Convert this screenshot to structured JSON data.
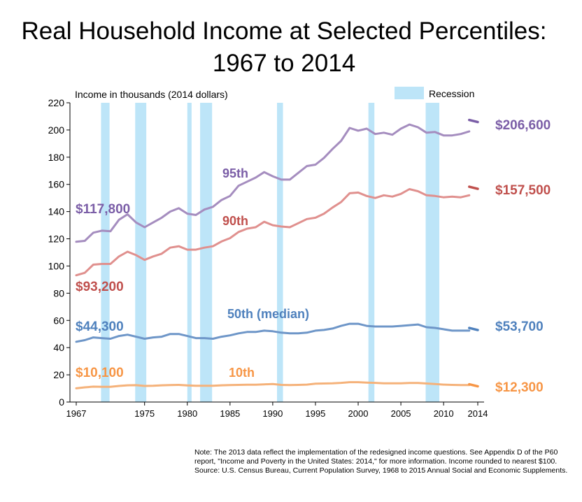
{
  "chart_data": {
    "type": "line",
    "title": [
      "Real Household Income at Selected Percentiles:",
      "1967 to 2014"
    ],
    "ylabel": "Income in thousands (2014 dollars)",
    "xlabel": "",
    "ylim": [
      0,
      220
    ],
    "yticks": [
      0,
      20,
      40,
      60,
      80,
      100,
      120,
      140,
      160,
      180,
      200,
      220
    ],
    "xlim": [
      1967,
      2014
    ],
    "xticks": [
      1967,
      1975,
      1980,
      1985,
      1990,
      1995,
      2000,
      2005,
      2010,
      2014
    ],
    "legend": {
      "label": "Recession",
      "color": "#bde5f8",
      "position": "top-right"
    },
    "recessions": [
      [
        1969.9,
        1970.9
      ],
      [
        1973.9,
        1975.2
      ],
      [
        1980.0,
        1980.5
      ],
      [
        1981.5,
        1982.9
      ],
      [
        1990.5,
        1991.2
      ],
      [
        2001.2,
        2001.9
      ],
      [
        2007.9,
        2009.5
      ]
    ],
    "series": [
      {
        "name": "95th",
        "label": "95th",
        "color": "#a58dbf",
        "marker_color": "#7b5ea7",
        "start_label": "$117,800",
        "end_label": "$206,600",
        "end_value": 206.6,
        "x": [
          1967,
          1968,
          1969,
          1970,
          1971,
          1972,
          1973,
          1974,
          1975,
          1976,
          1977,
          1978,
          1979,
          1980,
          1981,
          1982,
          1983,
          1984,
          1985,
          1986,
          1987,
          1988,
          1989,
          1990,
          1991,
          1992,
          1993,
          1994,
          1995,
          1996,
          1997,
          1998,
          1999,
          2000,
          2001,
          2002,
          2003,
          2004,
          2005,
          2006,
          2007,
          2008,
          2009,
          2010,
          2011,
          2012,
          2013
        ],
        "values": [
          117.8,
          118.5,
          124.5,
          126,
          125.5,
          134,
          138,
          132,
          128.5,
          132,
          135.5,
          140,
          142.5,
          138.5,
          137.5,
          141.5,
          143.5,
          148.5,
          151.5,
          159,
          162,
          165,
          169,
          166,
          163.5,
          163.5,
          168.5,
          173.5,
          174.5,
          179.5,
          186,
          192,
          201.5,
          199.5,
          201,
          197,
          198,
          196.5,
          201,
          204,
          202,
          198,
          198.5,
          196,
          196,
          197,
          199
        ]
      },
      {
        "name": "90th",
        "label": "90th",
        "color": "#e0908e",
        "marker_color": "#c0504d",
        "start_label": "$93,200",
        "end_label": "$157,500",
        "end_value": 157.5,
        "x": [
          1967,
          1968,
          1969,
          1970,
          1971,
          1972,
          1973,
          1974,
          1975,
          1976,
          1977,
          1978,
          1979,
          1980,
          1981,
          1982,
          1983,
          1984,
          1985,
          1986,
          1987,
          1988,
          1989,
          1990,
          1991,
          1992,
          1993,
          1994,
          1995,
          1996,
          1997,
          1998,
          1999,
          2000,
          2001,
          2002,
          2003,
          2004,
          2005,
          2006,
          2007,
          2008,
          2009,
          2010,
          2011,
          2012,
          2013
        ],
        "values": [
          93.2,
          95,
          101,
          101.5,
          101.5,
          107,
          110.5,
          108,
          104.5,
          107,
          109,
          113.5,
          114.5,
          112,
          112,
          113.5,
          114.5,
          118,
          120.5,
          125,
          127.5,
          128.5,
          132.5,
          130,
          129,
          128.5,
          131.5,
          134.5,
          135.5,
          138.5,
          143,
          147,
          153.5,
          154,
          151.5,
          150,
          152,
          151,
          153,
          156.5,
          155,
          152,
          151.5,
          150.5,
          151,
          150.5,
          152
        ]
      },
      {
        "name": "50th (median)",
        "label": "50th (median)",
        "color": "#6e96c8",
        "marker_color": "#4f81bd",
        "start_label": "$44,300",
        "end_label": "$53,700",
        "end_value": 53.7,
        "x": [
          1967,
          1968,
          1969,
          1970,
          1971,
          1972,
          1973,
          1974,
          1975,
          1976,
          1977,
          1978,
          1979,
          1980,
          1981,
          1982,
          1983,
          1984,
          1985,
          1986,
          1987,
          1988,
          1989,
          1990,
          1991,
          1992,
          1993,
          1994,
          1995,
          1996,
          1997,
          1998,
          1999,
          2000,
          2001,
          2002,
          2003,
          2004,
          2005,
          2006,
          2007,
          2008,
          2009,
          2010,
          2011,
          2012,
          2013
        ],
        "values": [
          44.3,
          45.5,
          47.5,
          47,
          46.5,
          48.5,
          49.5,
          48,
          46.5,
          47.5,
          48,
          50,
          50,
          48.5,
          47,
          47,
          46.5,
          48,
          49,
          50.5,
          51.5,
          51.5,
          52.5,
          52,
          51,
          50.5,
          50.5,
          51,
          52.5,
          53,
          54,
          56,
          57.5,
          57.5,
          56,
          55.5,
          55.5,
          55.5,
          56,
          56.5,
          57,
          55,
          54.5,
          53.5,
          52.5,
          52.5,
          52.5
        ]
      },
      {
        "name": "10th",
        "label": "10th",
        "color": "#f5b27a",
        "marker_color": "#f79646",
        "start_label": "$10,100",
        "end_label": "$12,300",
        "end_value": 12.3,
        "x": [
          1967,
          1968,
          1969,
          1970,
          1971,
          1972,
          1973,
          1974,
          1975,
          1976,
          1977,
          1978,
          1979,
          1980,
          1981,
          1982,
          1983,
          1984,
          1985,
          1986,
          1987,
          1988,
          1989,
          1990,
          1991,
          1992,
          1993,
          1994,
          1995,
          1996,
          1997,
          1998,
          1999,
          2000,
          2001,
          2002,
          2003,
          2004,
          2005,
          2006,
          2007,
          2008,
          2009,
          2010,
          2011,
          2012,
          2013
        ],
        "values": [
          10.1,
          10.8,
          11.3,
          11.2,
          11.2,
          11.8,
          12.3,
          12.4,
          11.8,
          12,
          12.3,
          12.5,
          12.6,
          12.2,
          12,
          12,
          12,
          12.3,
          12.5,
          12.6,
          12.7,
          12.7,
          13,
          13.2,
          12.6,
          12.5,
          12.6,
          12.8,
          13.5,
          13.6,
          13.7,
          14.1,
          14.6,
          14.6,
          14.3,
          14.1,
          13.8,
          13.7,
          13.8,
          14.0,
          14.0,
          13.6,
          13.2,
          12.8,
          12.6,
          12.5,
          12.5
        ]
      }
    ]
  },
  "note": {
    "lines": [
      "Note: The 2013 data reflect the implementation of the redesigned income questions. See Appendix D of the P60 report, \"Income and Poverty in the United States: 2014,\" for more information. Income rounded to nearest $100.",
      "Source: U.S. Census Bureau, Current Population Survey, 1968 to 2015 Annual Social and Economic Supplements."
    ]
  }
}
